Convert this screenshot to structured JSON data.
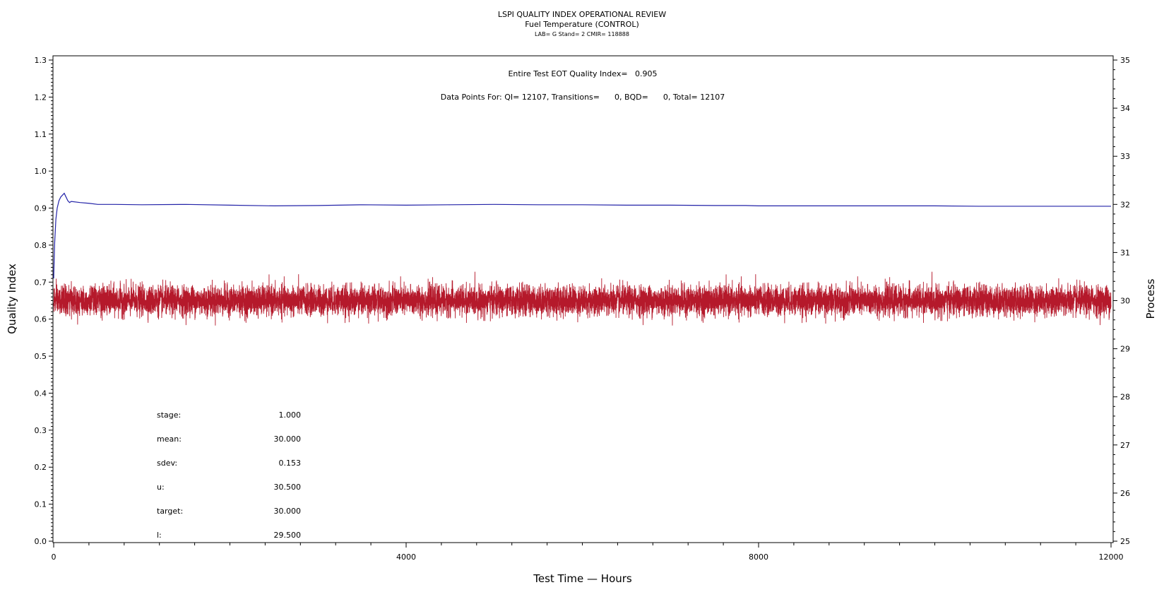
{
  "chart_data": {
    "type": "line",
    "title": "LSPI QUALITY INDEX OPERATIONAL REVIEW",
    "subtitle": "Fuel Temperature (CONTROL)",
    "subtitle2": "LAB= G Stand= 2 CMIR= 118888",
    "xlabel": "Test Time — Hours",
    "ylabel_left": "Quality Index",
    "ylabel_right": "Process",
    "xlim": [
      0,
      12000
    ],
    "ylim_left": [
      0.0,
      1.3
    ],
    "ylim_right": [
      25,
      35
    ],
    "x_ticks": [
      "0",
      "4000",
      "8000",
      "12000"
    ],
    "y_left_ticks": [
      "0.0",
      "0.1",
      "0.2",
      "0.3",
      "0.4",
      "0.5",
      "0.6",
      "0.7",
      "0.8",
      "0.9",
      "1.0",
      "1.1",
      "1.2",
      "1.3"
    ],
    "y_right_ticks": [
      "25",
      "26",
      "27",
      "28",
      "29",
      "30",
      "31",
      "32",
      "33",
      "34",
      "35"
    ],
    "annotations": {
      "eot": "Entire Test EOT Quality Index=   0.905",
      "points": "Data Points For: QI= 12107, Transitions=      0, BQD=      0, Total= 12107"
    },
    "stats": [
      {
        "label": "stage:",
        "value": "1.000"
      },
      {
        "label": "mean:",
        "value": "30.000"
      },
      {
        "label": "sdev:",
        "value": "0.153"
      },
      {
        "label": "u:",
        "value": "30.500"
      },
      {
        "label": "target:",
        "value": "30.000"
      },
      {
        "label": "l:",
        "value": "29.500"
      }
    ],
    "series": [
      {
        "axis": "left",
        "color": "#2323a8",
        "points": [
          [
            0,
            0.71
          ],
          [
            10,
            0.8
          ],
          [
            25,
            0.87
          ],
          [
            40,
            0.9
          ],
          [
            60,
            0.92
          ],
          [
            80,
            0.93
          ],
          [
            100,
            0.935
          ],
          [
            120,
            0.94
          ],
          [
            140,
            0.93
          ],
          [
            160,
            0.92
          ],
          [
            180,
            0.915
          ],
          [
            200,
            0.918
          ],
          [
            300,
            0.915
          ],
          [
            400,
            0.913
          ],
          [
            500,
            0.91
          ],
          [
            700,
            0.91
          ],
          [
            1000,
            0.909
          ],
          [
            1500,
            0.91
          ],
          [
            2000,
            0.908
          ],
          [
            2500,
            0.906
          ],
          [
            3000,
            0.907
          ],
          [
            3500,
            0.909
          ],
          [
            4000,
            0.908
          ],
          [
            4500,
            0.909
          ],
          [
            5000,
            0.91
          ],
          [
            5500,
            0.909
          ],
          [
            6000,
            0.909
          ],
          [
            6500,
            0.908
          ],
          [
            7000,
            0.908
          ],
          [
            7500,
            0.907
          ],
          [
            7850,
            0.907
          ],
          [
            8000,
            0.906
          ],
          [
            8500,
            0.906
          ],
          [
            9000,
            0.906
          ],
          [
            9500,
            0.906
          ],
          [
            10000,
            0.906
          ],
          [
            10500,
            0.905
          ],
          [
            11000,
            0.905
          ],
          [
            11500,
            0.905
          ],
          [
            12000,
            0.905
          ]
        ]
      },
      {
        "axis": "right",
        "color": "#b5192b",
        "mean": 30.0,
        "sdev": 0.153,
        "n": 12107
      }
    ],
    "grid": false
  }
}
